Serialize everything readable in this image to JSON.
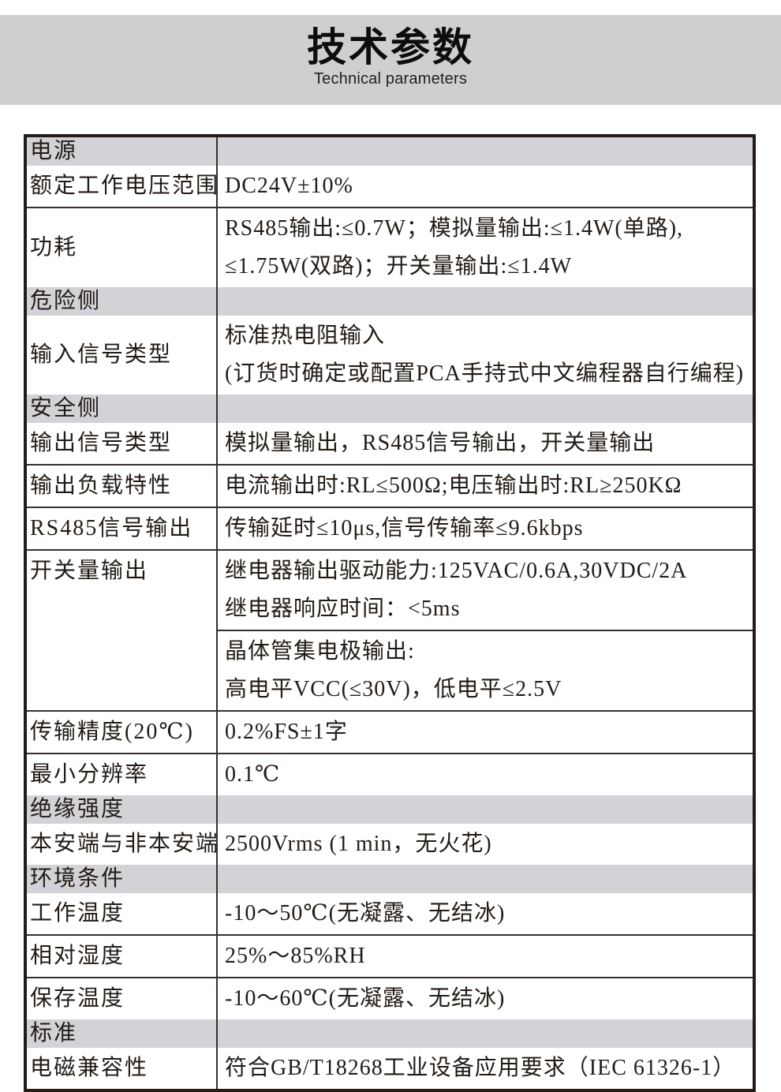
{
  "page": {
    "background": "#ffffff"
  },
  "header": {
    "title": "技术参数",
    "subtitle": "Technical parameters",
    "banner_color": "#d0ced0"
  },
  "table": {
    "border_color": "#241d16",
    "grid_line_color": "#36312e",
    "section_row_color": "#d3d2d6",
    "rows": [
      {
        "type": "section",
        "label": "电源"
      },
      {
        "type": "row",
        "label": "额定工作电压范围",
        "value": [
          "DC24V±10%"
        ]
      },
      {
        "type": "row",
        "label": "功耗",
        "value": [
          "RS485输出:≤0.7W；模拟量输出:≤1.4W(单路),",
          "≤1.75W(双路)；开关量输出:≤1.4W"
        ]
      },
      {
        "type": "section",
        "label": "危险侧"
      },
      {
        "type": "row",
        "label": "输入信号类型",
        "value": [
          "标准热电阻输入",
          "(订货时确定或配置PCA手持式中文编程器自行编程)"
        ]
      },
      {
        "type": "section",
        "label": "安全侧"
      },
      {
        "type": "row",
        "label": "输出信号类型",
        "value": [
          "模拟量输出，RS485信号输出，开关量输出"
        ]
      },
      {
        "type": "row",
        "label": "输出负载特性",
        "value": [
          "电流输出时:RL≤500Ω;电压输出时:RL≥250KΩ"
        ]
      },
      {
        "type": "row",
        "label": "RS485信号输出",
        "value": [
          "传输延时≤10μs,信号传输率≤9.6kbps"
        ]
      },
      {
        "type": "rowspan",
        "label": "开关量输出",
        "blocks": [
          [
            "继电器输出驱动能力:125VAC/0.6A,30VDC/2A",
            "继电器响应时间：<5ms"
          ],
          [
            "晶体管集电极输出:",
            "高电平VCC(≤30V)，低电平≤2.5V"
          ]
        ]
      },
      {
        "type": "row",
        "label": "传输精度(20℃)",
        "value": [
          "0.2%FS±1字"
        ]
      },
      {
        "type": "row",
        "label": "最小分辨率",
        "value": [
          "0.1℃"
        ]
      },
      {
        "type": "section",
        "label": "绝缘强度"
      },
      {
        "type": "row",
        "label": "本安端与非本安端",
        "value": [
          "2500Vrms (1 min，无火花)"
        ]
      },
      {
        "type": "section",
        "label": "环境条件"
      },
      {
        "type": "row",
        "label": "工作温度",
        "value": [
          "-10～50℃(无凝露、无结冰)"
        ]
      },
      {
        "type": "row",
        "label": "相对湿度",
        "value": [
          "25%～85%RH"
        ]
      },
      {
        "type": "row",
        "label": "保存温度",
        "value": [
          "-10～60℃(无凝露、无结冰)"
        ]
      },
      {
        "type": "section",
        "label": "标准"
      },
      {
        "type": "row",
        "label": "电磁兼容性",
        "value": [
          "符合GB/T18268工业设备应用要求（IEC 61326-1）"
        ]
      }
    ]
  }
}
